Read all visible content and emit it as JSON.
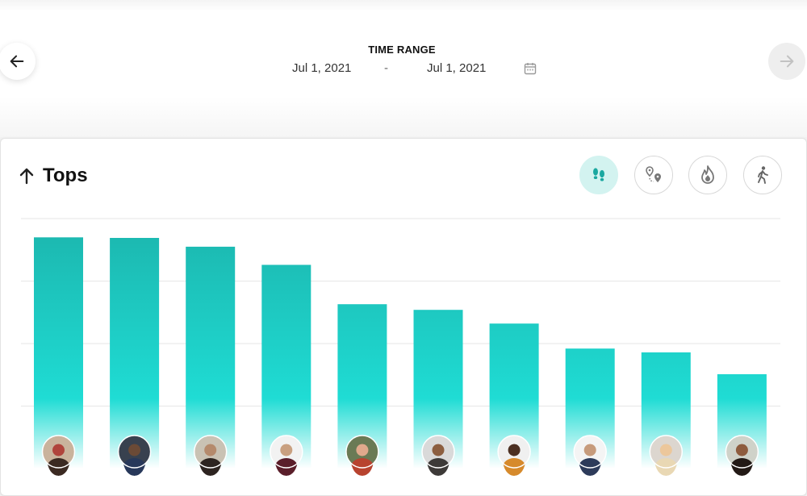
{
  "header": {
    "time_range_label": "TIME RANGE",
    "date_from": "Jul 1, 2021",
    "date_separator": "-",
    "date_to": "Jul 1, 2021",
    "prev_icon": "arrow-left-icon",
    "next_icon": "arrow-right-icon",
    "calendar_icon": "calendar-icon"
  },
  "card": {
    "title": "Tops",
    "title_icon": "arrow-up-icon",
    "metric_buttons": [
      {
        "name": "footsteps-icon",
        "active": true
      },
      {
        "name": "route-icon",
        "active": false
      },
      {
        "name": "flame-icon",
        "active": false
      },
      {
        "name": "walking-icon",
        "active": false
      }
    ]
  },
  "colors": {
    "bar_top": "#1cb5ad",
    "bar_mid": "#1fdcd4",
    "bar_bottom": "#ffffff",
    "grid": "#e6e6e6",
    "active_button_bg": "#d3f3f0",
    "active_icon": "#1aa8a0"
  },
  "chart_data": {
    "type": "bar",
    "title": "",
    "xlabel": "",
    "ylabel": "",
    "ylim": [
      0,
      4
    ],
    "grid": true,
    "gridlines": [
      1,
      2,
      3,
      4
    ],
    "categories": [
      "user-1",
      "user-2",
      "user-3",
      "user-4",
      "user-5",
      "user-6",
      "user-7",
      "user-8",
      "user-9",
      "user-10"
    ],
    "category_markers": [
      "avatar",
      "avatar",
      "avatar",
      "avatar",
      "avatar",
      "avatar",
      "avatar",
      "avatar",
      "avatar",
      "avatar"
    ],
    "values": [
      3.7,
      3.69,
      3.55,
      3.26,
      2.63,
      2.54,
      2.32,
      1.92,
      1.86,
      1.51
    ]
  }
}
